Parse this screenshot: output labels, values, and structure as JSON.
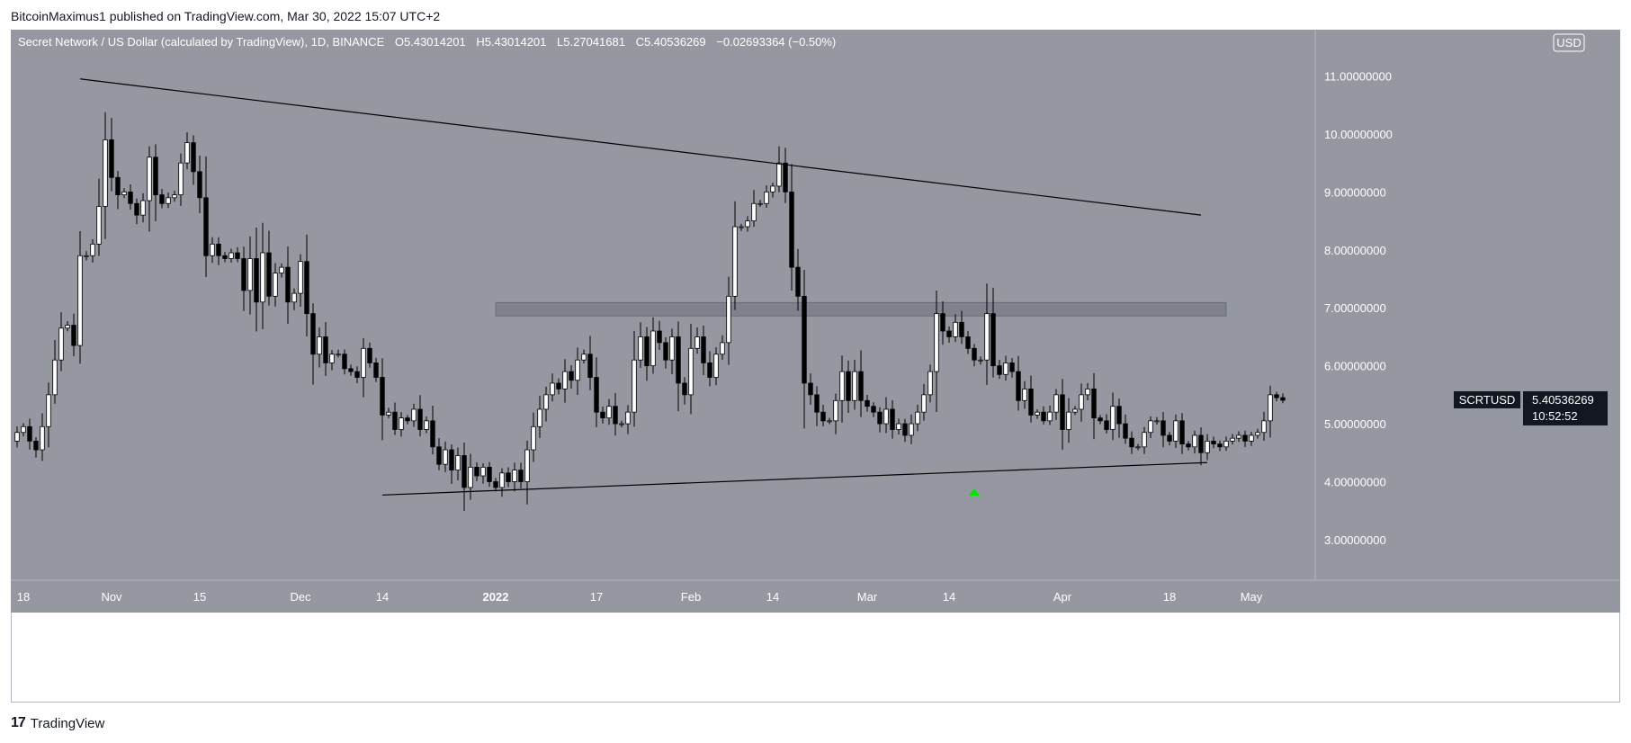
{
  "header": {
    "publisher_line": "BitcoinMaximus1 published on TradingView.com, Mar 30, 2022 15:07 UTC+2"
  },
  "legend": {
    "title": "Secret Network / US Dollar (calculated by TradingView), 1D, BINANCE",
    "o_label": "O",
    "o_value": "5.43014201",
    "h_label": "H",
    "h_value": "5.43014201",
    "l_label": "L",
    "l_value": "5.27041681",
    "c_label": "C",
    "c_value": "5.40536269",
    "change": "−0.02693364 (−0.50%)"
  },
  "currency_button": "USD",
  "price_tag": {
    "symbol": "SCRTUSD",
    "price": "5.40536269",
    "countdown": "10:52:52"
  },
  "footer": {
    "brand": "TradingView",
    "mark": "17"
  },
  "colors": {
    "plot_bg": "#9598a1",
    "up_candle": "#ffffff",
    "down_candle": "#000000",
    "zone": "#787b86",
    "arrow": "#00e600"
  },
  "chart_data": {
    "type": "candlestick",
    "title": "Secret Network / US Dollar (calculated by TradingView), 1D, BINANCE",
    "symbol": "SCRTUSD",
    "ylim": [
      2.3,
      11.8
    ],
    "y_ticks": [
      "11.00000000",
      "10.00000000",
      "9.00000000",
      "8.00000000",
      "7.00000000",
      "6.00000000",
      "5.00000000",
      "4.00000000",
      "3.00000000"
    ],
    "y_tick_values": [
      11,
      10,
      9,
      8,
      7,
      6,
      5,
      4,
      3
    ],
    "x_ticks": [
      {
        "label": "18",
        "date": "2021-10-18"
      },
      {
        "label": "Nov",
        "date": "2021-11-01"
      },
      {
        "label": "15",
        "date": "2021-11-15"
      },
      {
        "label": "Dec",
        "date": "2021-12-01"
      },
      {
        "label": "14",
        "date": "2021-12-14"
      },
      {
        "label": "2022",
        "date": "2022-01-01"
      },
      {
        "label": "17",
        "date": "2022-01-17"
      },
      {
        "label": "Feb",
        "date": "2022-02-01"
      },
      {
        "label": "14",
        "date": "2022-02-14"
      },
      {
        "label": "Mar",
        "date": "2022-03-01"
      },
      {
        "label": "14",
        "date": "2022-03-14"
      },
      {
        "label": "Apr",
        "date": "2022-04-01"
      },
      {
        "label": "18",
        "date": "2022-04-18"
      },
      {
        "label": "May",
        "date": "2022-05-01"
      }
    ],
    "first_date": "2021-10-17",
    "close": [
      4.85,
      4.95,
      4.7,
      4.55,
      4.95,
      5.5,
      6.1,
      6.65,
      6.7,
      6.35,
      7.9,
      7.9,
      8.1,
      8.75,
      9.9,
      9.25,
      8.95,
      9.0,
      8.8,
      8.6,
      8.85,
      9.6,
      8.95,
      8.8,
      8.9,
      8.95,
      9.5,
      9.85,
      9.35,
      8.9,
      7.9,
      8.1,
      7.9,
      7.85,
      7.95,
      7.85,
      7.3,
      7.85,
      7.1,
      7.95,
      7.2,
      7.6,
      7.7,
      7.1,
      7.25,
      7.8,
      6.9,
      6.2,
      6.5,
      6.05,
      6.2,
      6.2,
      5.95,
      5.9,
      5.8,
      6.3,
      6.05,
      5.8,
      5.15,
      5.2,
      4.9,
      5.1,
      5.05,
      5.25,
      4.9,
      5.05,
      4.6,
      4.3,
      4.55,
      4.2,
      4.45,
      3.9,
      4.25,
      4.1,
      4.25,
      4.0,
      3.9,
      4.15,
      4.0,
      4.2,
      4.0,
      4.55,
      4.95,
      5.25,
      5.5,
      5.7,
      5.6,
      5.9,
      5.75,
      6.1,
      6.2,
      5.8,
      5.2,
      5.1,
      5.3,
      5.0,
      5.0,
      5.2,
      6.1,
      6.5,
      6.0,
      6.6,
      6.4,
      6.1,
      6.5,
      5.7,
      5.5,
      6.3,
      6.5,
      6.05,
      5.8,
      6.2,
      6.4,
      7.2,
      8.4,
      8.4,
      8.5,
      8.8,
      8.8,
      9.0,
      9.1,
      9.5,
      9.0,
      7.7,
      7.2,
      5.7,
      5.5,
      5.2,
      5.05,
      5.05,
      5.4,
      5.9,
      5.4,
      5.9,
      5.4,
      5.3,
      5.2,
      5.0,
      5.25,
      4.9,
      5.0,
      4.8,
      5.0,
      5.2,
      5.5,
      5.9,
      6.9,
      6.6,
      6.5,
      6.75,
      6.5,
      6.3,
      6.1,
      6.1,
      6.9,
      6.0,
      5.85,
      6.05,
      5.9,
      5.4,
      5.6,
      5.15,
      5.2,
      5.05,
      5.2,
      5.5,
      4.9,
      5.2,
      5.25,
      5.5,
      5.6,
      5.1,
      5.05,
      4.9,
      5.3,
      5.0,
      4.75,
      4.6,
      4.6,
      4.85,
      5.05,
      5.05,
      4.8,
      4.7,
      5.05,
      4.65,
      4.6,
      4.8,
      4.5,
      4.7,
      4.65,
      4.6,
      4.7,
      4.75,
      4.8,
      4.7,
      4.8,
      4.85,
      5.05,
      5.5,
      5.45,
      5.405
    ],
    "trendlines": [
      {
        "name": "descending resistance",
        "from": {
          "date": "2021-10-27",
          "price": 10.95
        },
        "to": {
          "date": "2022-04-23",
          "price": 8.6
        }
      },
      {
        "name": "ascending support",
        "from": {
          "date": "2021-12-14",
          "price": 3.77
        },
        "to": {
          "date": "2022-04-24",
          "price": 4.33
        }
      }
    ],
    "zones": [
      {
        "from_date": "2022-01-01",
        "to_date": "2022-04-27",
        "low": 6.86,
        "high": 7.09
      }
    ],
    "markers": [
      {
        "type": "arrow-up",
        "date": "2022-03-18",
        "price": 3.79
      }
    ]
  }
}
